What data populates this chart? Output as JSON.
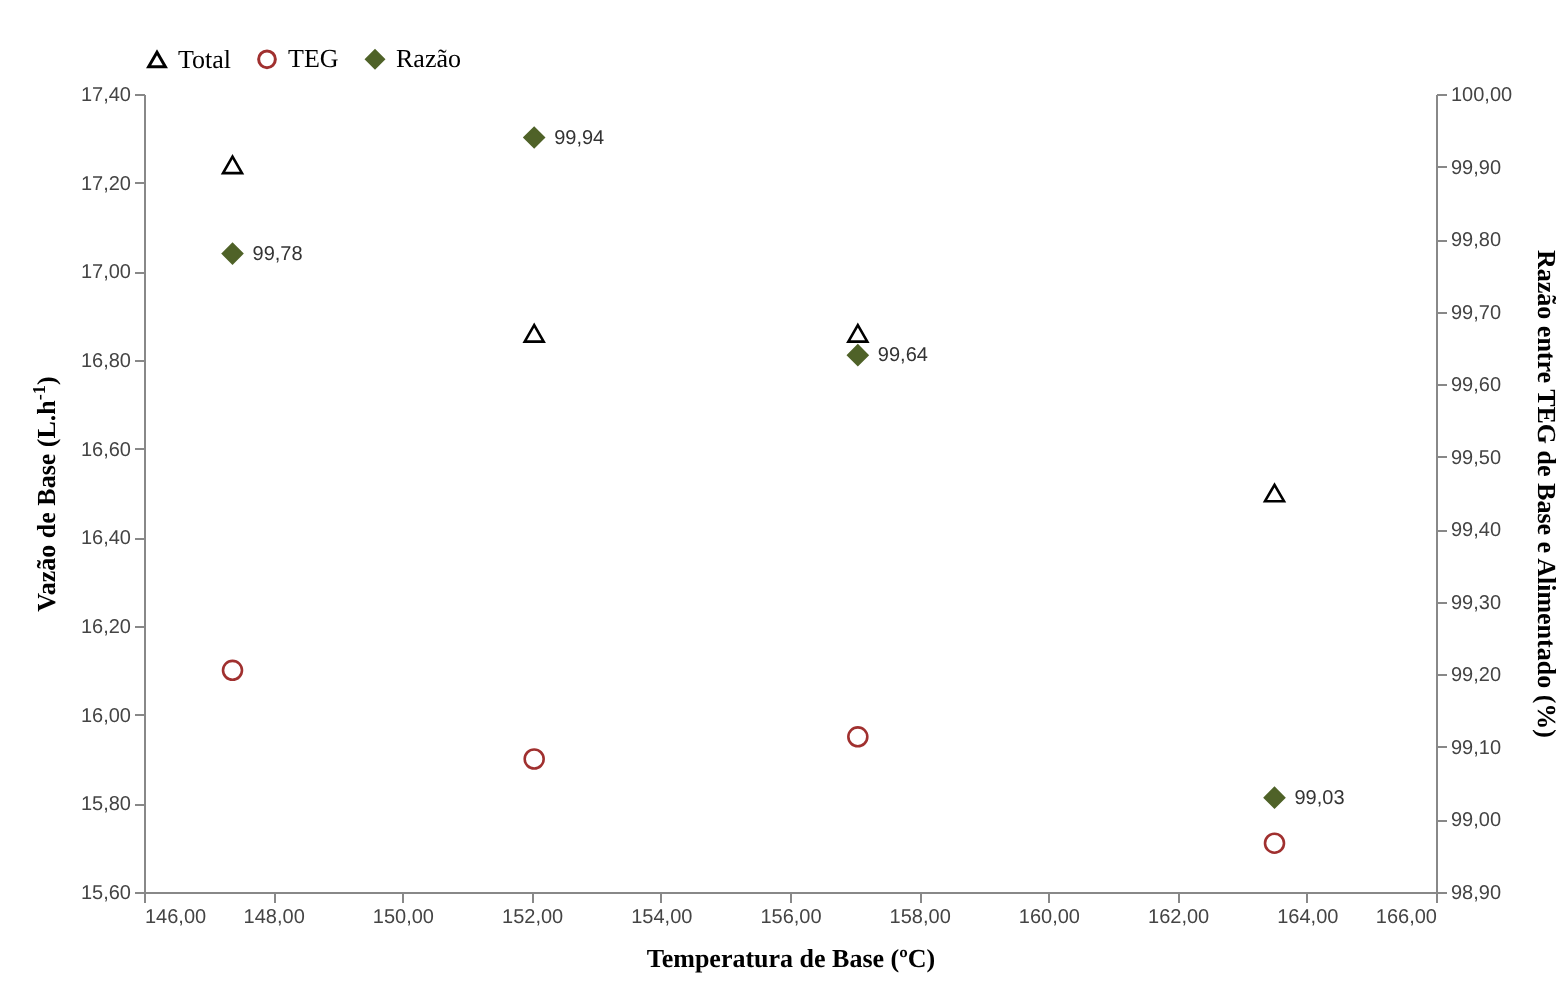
{
  "chart_data": {
    "type": "scatter",
    "xlabel": "Temperatura de Base (ºC)",
    "ylabel": "Vazão de Base (L.h$^{-1}$)",
    "y2label": "Razão entre TEG de Base e Alimentado (%)",
    "xlim": [
      146,
      166
    ],
    "xticks": [
      {
        "value": 146,
        "label": "146,00"
      },
      {
        "value": 148,
        "label": "148,00"
      },
      {
        "value": 150,
        "label": "150,00"
      },
      {
        "value": 152,
        "label": "152,00"
      },
      {
        "value": 154,
        "label": "154,00"
      },
      {
        "value": 156,
        "label": "156,00"
      },
      {
        "value": 158,
        "label": "158,00"
      },
      {
        "value": 160,
        "label": "160,00"
      },
      {
        "value": 162,
        "label": "162,00"
      },
      {
        "value": 164,
        "label": "164,00"
      },
      {
        "value": 166,
        "label": "166,00"
      }
    ],
    "ylim": [
      15.6,
      17.4
    ],
    "yticks": [
      {
        "value": 15.6,
        "label": "15,60"
      },
      {
        "value": 15.8,
        "label": "15,80"
      },
      {
        "value": 16,
        "label": "16,00"
      },
      {
        "value": 16.2,
        "label": "16,20"
      },
      {
        "value": 16.4,
        "label": "16,40"
      },
      {
        "value": 16.6,
        "label": "16,60"
      },
      {
        "value": 16.8,
        "label": "16,80"
      },
      {
        "value": 17,
        "label": "17,00"
      },
      {
        "value": 17.2,
        "label": "17,20"
      },
      {
        "value": 17.4,
        "label": "17,40"
      }
    ],
    "y2lim": [
      98.9,
      100
    ],
    "y2ticks": [
      {
        "value": 98.9,
        "label": "98,90"
      },
      {
        "value": 99,
        "label": "99,00"
      },
      {
        "value": 99.1,
        "label": "99,10"
      },
      {
        "value": 99.2,
        "label": "99,20"
      },
      {
        "value": 99.3,
        "label": "99,30"
      },
      {
        "value": 99.4,
        "label": "99,40"
      },
      {
        "value": 99.5,
        "label": "99,50"
      },
      {
        "value": 99.6,
        "label": "99,60"
      },
      {
        "value": 99.7,
        "label": "99,70"
      },
      {
        "value": 99.8,
        "label": "99,80"
      },
      {
        "value": 99.9,
        "label": "99,90"
      },
      {
        "value": 100,
        "label": "100,00"
      }
    ],
    "x": [
      147.37,
      152.04,
      157.05,
      163.5
    ],
    "series": [
      {
        "name": "Total",
        "color": "#000000",
        "marker": "triangle",
        "values": [
          17.24,
          16.86,
          16.86,
          16.5
        ]
      },
      {
        "name": "TEG",
        "color": "#a0302f",
        "marker": "circle",
        "values": [
          16.1,
          15.9,
          15.95,
          15.71
        ]
      },
      {
        "name": "Razão",
        "color": "#4f6228",
        "marker": "diamond",
        "axis": "y2",
        "values": [
          99.78,
          99.94,
          99.64,
          99.03
        ],
        "value_labels": [
          "99,78",
          "99,94",
          "99,64",
          "99,03"
        ]
      }
    ],
    "grid": false,
    "legend": "top"
  }
}
